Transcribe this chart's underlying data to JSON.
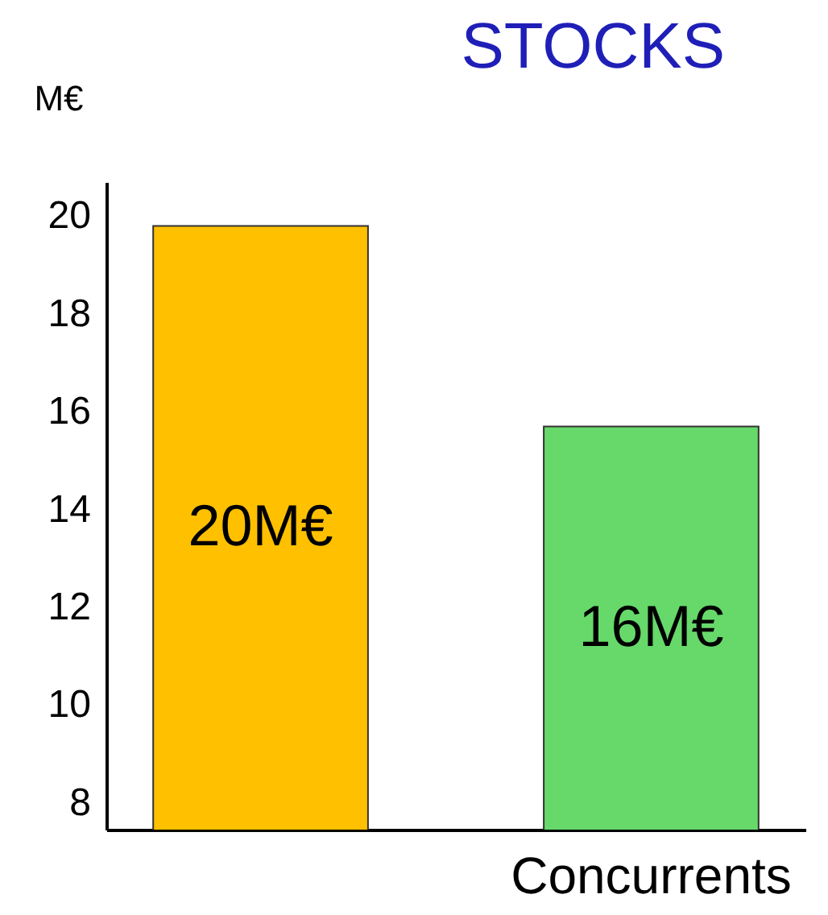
{
  "chart_data": {
    "type": "bar",
    "title": "STOCKS",
    "ylabel": "M€",
    "categories": [
      null,
      "Concurrents"
    ],
    "values": [
      19.8,
      15.7
    ],
    "colors": [
      "#ffc000",
      "#66d96a"
    ],
    "value_labels": [
      "20M€",
      "16M€"
    ],
    "ylim": [
      7.45,
      20.7
    ],
    "yticks": [
      8,
      10,
      12,
      14,
      16,
      18,
      20
    ],
    "grid": false
  }
}
